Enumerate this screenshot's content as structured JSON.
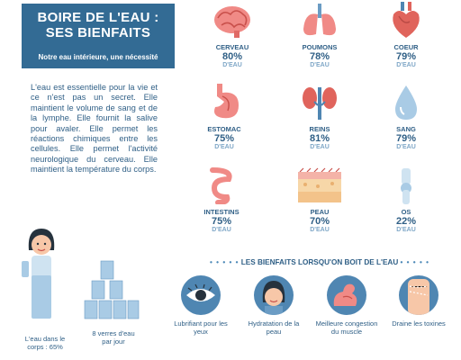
{
  "title": {
    "line1": "BOIRE DE L'EAU :",
    "line2": "SES BIENFAITS",
    "subtitle": "Notre eau intérieure, une nécessité"
  },
  "intro_text": "L'eau est essentielle pour la vie et ce n'est pas un secret. Elle maintient le volume de sang et de la lymphe. Elle fournit la salive pour avaler. Elle permet les réactions chimiques entre les cellules. Elle permet l'activité neurologique du cerveau. Elle maintient la température du corps.",
  "organs": [
    {
      "name": "CERVEAU",
      "pct": "80%",
      "unit": "D'EAU",
      "icon": "brain-icon"
    },
    {
      "name": "POUMONS",
      "pct": "78%",
      "unit": "D'EAU",
      "icon": "lungs-icon"
    },
    {
      "name": "COEUR",
      "pct": "79%",
      "unit": "D'EAU",
      "icon": "heart-icon"
    },
    {
      "name": "ESTOMAC",
      "pct": "75%",
      "unit": "D'EAU",
      "icon": "stomach-icon"
    },
    {
      "name": "REINS",
      "pct": "81%",
      "unit": "D'EAU",
      "icon": "kidneys-icon"
    },
    {
      "name": "SANG",
      "pct": "79%",
      "unit": "D'EAU",
      "icon": "blood-drop-icon"
    },
    {
      "name": "INTESTINS",
      "pct": "75%",
      "unit": "D'EAU",
      "icon": "intestine-icon"
    },
    {
      "name": "PEAU",
      "pct": "70%",
      "unit": "D'EAU",
      "icon": "skin-icon"
    },
    {
      "name": "OS",
      "pct": "22%",
      "unit": "D'EAU",
      "icon": "bone-icon"
    }
  ],
  "benefits_heading": "LES BIENFAITS LORSQU'ON BOIT DE L'EAU",
  "benefits": [
    {
      "label": "Lubrifiant pour les yeux",
      "icon": "eye-icon"
    },
    {
      "label": "Hydratation de la peau",
      "icon": "woman-face-icon"
    },
    {
      "label": "Meilleure congestion du muscle",
      "icon": "muscle-arm-icon"
    },
    {
      "label": "Draine les toxines",
      "icon": "belly-icon"
    }
  ],
  "body_water": "L'eau dans le corps : 65%",
  "glasses": "8 verres d'eau par jour",
  "colors": {
    "primary": "#336b94",
    "text": "#2f5f86",
    "accent": "#e0645c",
    "light": "#cfe3f1"
  }
}
